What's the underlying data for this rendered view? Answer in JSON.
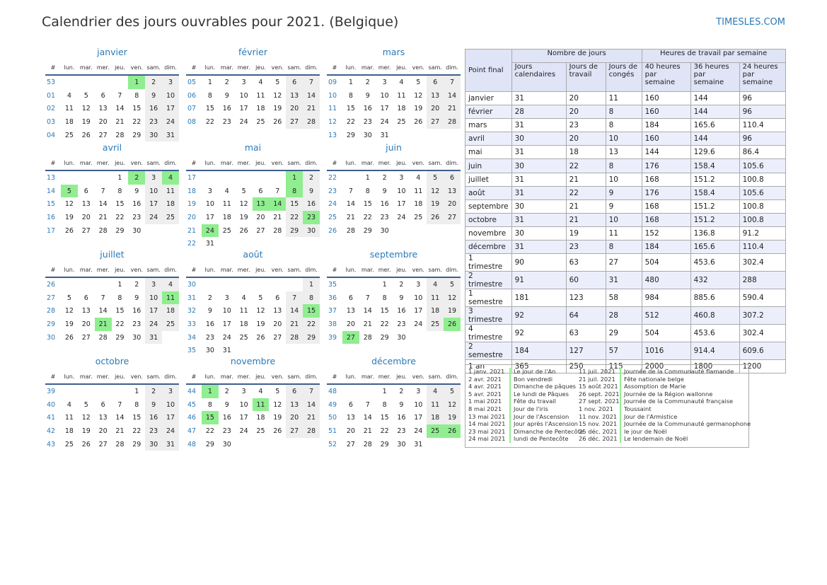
{
  "header": {
    "title": "Calendrier des jours ouvrables pour 2021. (Belgique)",
    "site": "TIMESLES.COM"
  },
  "weekdays": [
    "#",
    "lun.",
    "mar.",
    "mer.",
    "jeu.",
    "ven.",
    "sam.",
    "dim."
  ],
  "months": [
    {
      "name": "janvier",
      "holidays": [
        1
      ],
      "weeks": [
        {
          "num": "53",
          "days": [
            null,
            null,
            null,
            null,
            1,
            2,
            3
          ]
        },
        {
          "num": "01",
          "days": [
            4,
            5,
            6,
            7,
            8,
            9,
            10
          ]
        },
        {
          "num": "02",
          "days": [
            11,
            12,
            13,
            14,
            15,
            16,
            17
          ]
        },
        {
          "num": "03",
          "days": [
            18,
            19,
            20,
            21,
            22,
            23,
            24
          ]
        },
        {
          "num": "04",
          "days": [
            25,
            26,
            27,
            28,
            29,
            30,
            31
          ]
        }
      ]
    },
    {
      "name": "février",
      "holidays": [],
      "weeks": [
        {
          "num": "05",
          "days": [
            1,
            2,
            3,
            4,
            5,
            6,
            7
          ]
        },
        {
          "num": "06",
          "days": [
            8,
            9,
            10,
            11,
            12,
            13,
            14
          ]
        },
        {
          "num": "07",
          "days": [
            15,
            16,
            17,
            18,
            19,
            20,
            21
          ]
        },
        {
          "num": "08",
          "days": [
            22,
            23,
            24,
            25,
            26,
            27,
            28
          ]
        }
      ]
    },
    {
      "name": "mars",
      "holidays": [],
      "weeks": [
        {
          "num": "09",
          "days": [
            1,
            2,
            3,
            4,
            5,
            6,
            7
          ]
        },
        {
          "num": "10",
          "days": [
            8,
            9,
            10,
            11,
            12,
            13,
            14
          ]
        },
        {
          "num": "11",
          "days": [
            15,
            16,
            17,
            18,
            19,
            20,
            21
          ]
        },
        {
          "num": "12",
          "days": [
            22,
            23,
            24,
            25,
            26,
            27,
            28
          ]
        },
        {
          "num": "13",
          "days": [
            29,
            30,
            31,
            null,
            null,
            null,
            null
          ]
        }
      ]
    },
    {
      "name": "avril",
      "holidays": [
        2,
        4,
        5
      ],
      "weeks": [
        {
          "num": "13",
          "days": [
            null,
            null,
            null,
            1,
            2,
            3,
            4
          ]
        },
        {
          "num": "14",
          "days": [
            5,
            6,
            7,
            8,
            9,
            10,
            11
          ]
        },
        {
          "num": "15",
          "days": [
            12,
            13,
            14,
            15,
            16,
            17,
            18
          ]
        },
        {
          "num": "16",
          "days": [
            19,
            20,
            21,
            22,
            23,
            24,
            25
          ]
        },
        {
          "num": "17",
          "days": [
            26,
            27,
            28,
            29,
            30,
            null,
            null
          ]
        }
      ]
    },
    {
      "name": "mai",
      "holidays": [
        1,
        8,
        13,
        14,
        23,
        24
      ],
      "weeks": [
        {
          "num": "17",
          "days": [
            null,
            null,
            null,
            null,
            null,
            1,
            2
          ]
        },
        {
          "num": "18",
          "days": [
            3,
            4,
            5,
            6,
            7,
            8,
            9
          ]
        },
        {
          "num": "19",
          "days": [
            10,
            11,
            12,
            13,
            14,
            15,
            16
          ]
        },
        {
          "num": "20",
          "days": [
            17,
            18,
            19,
            20,
            21,
            22,
            23
          ]
        },
        {
          "num": "21",
          "days": [
            24,
            25,
            26,
            27,
            28,
            29,
            30
          ]
        },
        {
          "num": "22",
          "days": [
            31,
            null,
            null,
            null,
            null,
            null,
            null
          ]
        }
      ]
    },
    {
      "name": "juin",
      "holidays": [],
      "weeks": [
        {
          "num": "22",
          "days": [
            null,
            1,
            2,
            3,
            4,
            5,
            6
          ]
        },
        {
          "num": "23",
          "days": [
            7,
            8,
            9,
            10,
            11,
            12,
            13
          ]
        },
        {
          "num": "24",
          "days": [
            14,
            15,
            16,
            17,
            18,
            19,
            20
          ]
        },
        {
          "num": "25",
          "days": [
            21,
            22,
            23,
            24,
            25,
            26,
            27
          ]
        },
        {
          "num": "26",
          "days": [
            28,
            29,
            30,
            null,
            null,
            null,
            null
          ]
        }
      ]
    },
    {
      "name": "juillet",
      "holidays": [
        11,
        21
      ],
      "weeks": [
        {
          "num": "26",
          "days": [
            null,
            null,
            null,
            1,
            2,
            3,
            4
          ]
        },
        {
          "num": "27",
          "days": [
            5,
            6,
            7,
            8,
            9,
            10,
            11
          ]
        },
        {
          "num": "28",
          "days": [
            12,
            13,
            14,
            15,
            16,
            17,
            18
          ]
        },
        {
          "num": "29",
          "days": [
            19,
            20,
            21,
            22,
            23,
            24,
            25
          ]
        },
        {
          "num": "30",
          "days": [
            26,
            27,
            28,
            29,
            30,
            31,
            null
          ]
        }
      ]
    },
    {
      "name": "août",
      "holidays": [
        15
      ],
      "weeks": [
        {
          "num": "30",
          "days": [
            null,
            null,
            null,
            null,
            null,
            null,
            1
          ]
        },
        {
          "num": "31",
          "days": [
            2,
            3,
            4,
            5,
            6,
            7,
            8
          ]
        },
        {
          "num": "32",
          "days": [
            9,
            10,
            11,
            12,
            13,
            14,
            15
          ]
        },
        {
          "num": "33",
          "days": [
            16,
            17,
            18,
            19,
            20,
            21,
            22
          ]
        },
        {
          "num": "34",
          "days": [
            23,
            24,
            25,
            26,
            27,
            28,
            29
          ]
        },
        {
          "num": "35",
          "days": [
            30,
            31,
            null,
            null,
            null,
            null,
            null
          ]
        }
      ]
    },
    {
      "name": "septembre",
      "holidays": [
        26,
        27
      ],
      "weeks": [
        {
          "num": "35",
          "days": [
            null,
            null,
            1,
            2,
            3,
            4,
            5
          ]
        },
        {
          "num": "36",
          "days": [
            6,
            7,
            8,
            9,
            10,
            11,
            12
          ]
        },
        {
          "num": "37",
          "days": [
            13,
            14,
            15,
            16,
            17,
            18,
            19
          ]
        },
        {
          "num": "38",
          "days": [
            20,
            21,
            22,
            23,
            24,
            25,
            26
          ]
        },
        {
          "num": "39",
          "days": [
            27,
            28,
            29,
            30,
            null,
            null,
            null
          ]
        }
      ]
    },
    {
      "name": "octobre",
      "holidays": [],
      "weeks": [
        {
          "num": "39",
          "days": [
            null,
            null,
            null,
            null,
            1,
            2,
            3
          ]
        },
        {
          "num": "40",
          "days": [
            4,
            5,
            6,
            7,
            8,
            9,
            10
          ]
        },
        {
          "num": "41",
          "days": [
            11,
            12,
            13,
            14,
            15,
            16,
            17
          ]
        },
        {
          "num": "42",
          "days": [
            18,
            19,
            20,
            21,
            22,
            23,
            24
          ]
        },
        {
          "num": "43",
          "days": [
            25,
            26,
            27,
            28,
            29,
            30,
            31
          ]
        }
      ]
    },
    {
      "name": "novembre",
      "holidays": [
        1,
        11,
        15
      ],
      "weeks": [
        {
          "num": "44",
          "days": [
            1,
            2,
            3,
            4,
            5,
            6,
            7
          ]
        },
        {
          "num": "45",
          "days": [
            8,
            9,
            10,
            11,
            12,
            13,
            14
          ]
        },
        {
          "num": "46",
          "days": [
            15,
            16,
            17,
            18,
            19,
            20,
            21
          ]
        },
        {
          "num": "47",
          "days": [
            22,
            23,
            24,
            25,
            26,
            27,
            28
          ]
        },
        {
          "num": "48",
          "days": [
            29,
            30,
            null,
            null,
            null,
            null,
            null
          ]
        }
      ]
    },
    {
      "name": "décembre",
      "holidays": [
        25,
        26
      ],
      "weeks": [
        {
          "num": "48",
          "days": [
            null,
            null,
            1,
            2,
            3,
            4,
            5
          ]
        },
        {
          "num": "49",
          "days": [
            6,
            7,
            8,
            9,
            10,
            11,
            12
          ]
        },
        {
          "num": "50",
          "days": [
            13,
            14,
            15,
            16,
            17,
            18,
            19
          ]
        },
        {
          "num": "51",
          "days": [
            20,
            21,
            22,
            23,
            24,
            25,
            26
          ]
        },
        {
          "num": "52",
          "days": [
            27,
            28,
            29,
            30,
            31,
            null,
            null
          ]
        }
      ]
    }
  ],
  "table": {
    "point": "Point final",
    "group_days": "Nombre de jours",
    "group_hours": "Heures de travail par semaine",
    "columns": [
      "Jours calendaires",
      "Jours de travail",
      "Jours de congés",
      "40 heures par semaine",
      "36 heures par semaine",
      "24 heures par semaine"
    ],
    "rows": [
      [
        "janvier",
        31,
        20,
        11,
        160,
        144,
        96
      ],
      [
        "février",
        28,
        20,
        8,
        160,
        144,
        96
      ],
      [
        "mars",
        31,
        23,
        8,
        184,
        165.6,
        110.4
      ],
      [
        "avril",
        30,
        20,
        10,
        160,
        144,
        96
      ],
      [
        "mai",
        31,
        18,
        13,
        144,
        129.6,
        86.4
      ],
      [
        "juin",
        30,
        22,
        8,
        176,
        158.4,
        105.6
      ],
      [
        "juillet",
        31,
        21,
        10,
        168,
        151.2,
        100.8
      ],
      [
        "août",
        31,
        22,
        9,
        176,
        158.4,
        105.6
      ],
      [
        "septembre",
        30,
        21,
        9,
        168,
        151.2,
        100.8
      ],
      [
        "octobre",
        31,
        21,
        10,
        168,
        151.2,
        100.8
      ],
      [
        "novembre",
        30,
        19,
        11,
        152,
        136.8,
        91.2
      ],
      [
        "décembre",
        31,
        23,
        8,
        184,
        165.6,
        110.4
      ],
      [
        "1 trimestre",
        90,
        63,
        27,
        504,
        453.6,
        302.4
      ],
      [
        "2 trimestre",
        91,
        60,
        31,
        480,
        432,
        288
      ],
      [
        "1 semestre",
        181,
        123,
        58,
        984,
        885.6,
        590.4
      ],
      [
        "3 trimestre",
        92,
        64,
        28,
        512,
        460.8,
        307.2
      ],
      [
        "4 trimestre",
        92,
        63,
        29,
        504,
        453.6,
        302.4
      ],
      [
        "2 semestre",
        184,
        127,
        57,
        1016,
        914.4,
        609.6
      ],
      [
        "1 an",
        365,
        250,
        115,
        2000,
        1800,
        1200
      ]
    ]
  },
  "holidays_list": {
    "left": [
      [
        "1 janv. 2021",
        "Le jour de l'An"
      ],
      [
        "2 avr. 2021",
        "Bon vendredi"
      ],
      [
        "4 avr. 2021",
        "Dimanche de pâques"
      ],
      [
        "5 avr. 2021",
        "Le lundi de Pâques"
      ],
      [
        "1 mai 2021",
        "Fête du travail"
      ],
      [
        "8 mai 2021",
        "Jour de l'iris"
      ],
      [
        "13 mai 2021",
        "Jour de l'Ascension"
      ],
      [
        "14 mai 2021",
        "Jour après l'Ascension"
      ],
      [
        "23 mai 2021",
        "Dimanche de Pentecôte"
      ],
      [
        "24 mai 2021",
        "lundi de Pentecôte"
      ]
    ],
    "right": [
      [
        "11 juil. 2021",
        "Journée de la Communauté flamande"
      ],
      [
        "21 juil. 2021",
        "Fête nationale belge"
      ],
      [
        "15 août 2021",
        "Assomption de Marie"
      ],
      [
        "26 sept. 2021",
        "Journée de la Région wallonne"
      ],
      [
        "27 sept. 2021",
        "Journée de la Communauté française"
      ],
      [
        "1 nov. 2021",
        "Toussaint"
      ],
      [
        "11 nov. 2021",
        "Jour de l'Armistice"
      ],
      [
        "15 nov. 2021",
        "Journée de la Communauté germanophone"
      ],
      [
        "25 déc. 2021",
        "le jour de Noël"
      ],
      [
        "26 déc. 2021",
        "Le lendemain de Noël"
      ]
    ]
  }
}
